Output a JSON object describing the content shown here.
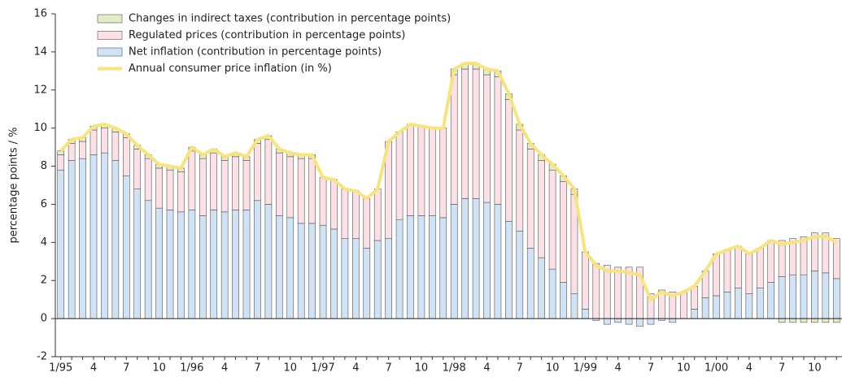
{
  "chart_data": {
    "type": "bar",
    "stacked": true,
    "y_label": "percentage points / %",
    "categories": [
      "1/95",
      null,
      null,
      "4",
      null,
      null,
      "7",
      null,
      null,
      "10",
      null,
      null,
      "1/96",
      null,
      null,
      "4",
      null,
      null,
      "7",
      null,
      null,
      "10",
      null,
      null,
      "1/97",
      null,
      null,
      "4",
      null,
      null,
      "7",
      null,
      null,
      "10",
      null,
      null,
      "1/98",
      null,
      null,
      "4",
      null,
      null,
      "7",
      null,
      null,
      "10",
      null,
      null,
      "1/99",
      null,
      null,
      "4",
      null,
      null,
      "7",
      null,
      null,
      "10",
      null,
      null,
      "1/00",
      null,
      null,
      "4",
      null,
      null,
      "7",
      null,
      null,
      "10",
      null,
      null
    ],
    "ylim": [
      -2,
      16
    ],
    "yticks": [
      -2,
      0,
      2,
      4,
      6,
      8,
      10,
      12,
      14,
      16
    ],
    "series": [
      {
        "name": "Net inflation (contribution in percentage points)",
        "color": "#cfe3f5",
        "type": "bar",
        "values": [
          7.8,
          8.3,
          8.4,
          8.6,
          8.7,
          8.3,
          7.5,
          6.8,
          6.2,
          5.8,
          5.7,
          5.6,
          5.7,
          5.4,
          5.7,
          5.6,
          5.7,
          5.7,
          6.2,
          6.0,
          5.4,
          5.3,
          5.0,
          5.0,
          4.9,
          4.7,
          4.2,
          4.2,
          3.7,
          4.1,
          4.2,
          5.2,
          5.4,
          5.4,
          5.4,
          5.3,
          6.0,
          6.3,
          6.3,
          6.1,
          6.0,
          5.1,
          4.6,
          3.7,
          3.2,
          2.6,
          1.9,
          1.3,
          0.5,
          -0.1,
          -0.3,
          -0.2,
          -0.3,
          -0.4,
          -0.3,
          -0.1,
          -0.2,
          0,
          0.5,
          1.1,
          1.2,
          1.4,
          1.6,
          1.3,
          1.6,
          1.9,
          2.2,
          2.3,
          2.3,
          2.5,
          2.4,
          2.1
        ]
      },
      {
        "name": "Regulated prices (contribution in percentage points)",
        "color": "#fbe0e6",
        "type": "bar",
        "values": [
          0.8,
          0.9,
          0.9,
          1.3,
          1.3,
          1.5,
          2.0,
          2.1,
          2.2,
          2.1,
          2.1,
          2.1,
          3.1,
          3.0,
          3.0,
          2.7,
          2.8,
          2.6,
          3.0,
          3.4,
          3.3,
          3.2,
          3.4,
          3.4,
          2.5,
          2.6,
          2.6,
          2.5,
          2.6,
          2.7,
          5.1,
          4.6,
          4.8,
          4.7,
          4.6,
          4.7,
          6.8,
          6.8,
          6.8,
          6.7,
          6.7,
          6.4,
          5.3,
          5.2,
          5.1,
          5.2,
          5.3,
          5.2,
          3.0,
          2.9,
          2.8,
          2.7,
          2.7,
          2.7,
          1.3,
          1.5,
          1.4,
          1.4,
          1.2,
          1.4,
          2.2,
          2.2,
          2.2,
          2.1,
          2.1,
          2.2,
          1.9,
          1.9,
          2.0,
          2.0,
          2.1,
          2.1
        ]
      },
      {
        "name": "Changes in indirect taxes (contribution in percentage points)",
        "color": "#e3ecc9",
        "type": "bar",
        "values": [
          0.2,
          0.2,
          0.2,
          0.2,
          0.2,
          0.2,
          0.2,
          0.2,
          0.2,
          0.2,
          0.2,
          0.2,
          0.2,
          0.2,
          0.2,
          0.2,
          0.2,
          0.2,
          0.2,
          0.2,
          0.2,
          0.2,
          0.2,
          0.2,
          0,
          0,
          0,
          0,
          0,
          0,
          0,
          0,
          0,
          0,
          0,
          0,
          0.3,
          0.3,
          0.3,
          0.3,
          0.3,
          0.3,
          0.3,
          0.3,
          0.3,
          0.3,
          0.3,
          0.3,
          0,
          0,
          0,
          0,
          0,
          0,
          0,
          0,
          0,
          0,
          0,
          0,
          0,
          0,
          0,
          0,
          0,
          0,
          -0.2,
          -0.2,
          -0.2,
          -0.2,
          -0.2,
          -0.2
        ]
      },
      {
        "name": "Annual consumer price inflation (in %)",
        "color": "#f7e47a",
        "type": "line",
        "values": [
          8.8,
          9.4,
          9.5,
          10.1,
          10.2,
          10.0,
          9.7,
          9.1,
          8.6,
          8.1,
          8.0,
          7.9,
          9.0,
          8.6,
          8.9,
          8.5,
          8.7,
          8.5,
          9.4,
          9.6,
          8.9,
          8.7,
          8.6,
          8.6,
          7.4,
          7.3,
          6.8,
          6.7,
          6.3,
          6.8,
          9.3,
          9.8,
          10.2,
          10.1,
          10.0,
          10.0,
          13.1,
          13.4,
          13.4,
          13.1,
          13.0,
          11.8,
          10.2,
          9.2,
          8.6,
          8.1,
          7.5,
          6.8,
          3.5,
          2.8,
          2.5,
          2.5,
          2.4,
          2.3,
          1.0,
          1.4,
          1.2,
          1.4,
          1.7,
          2.5,
          3.4,
          3.6,
          3.8,
          3.4,
          3.7,
          4.1,
          3.9,
          4.0,
          4.1,
          4.3,
          4.3,
          4.0
        ]
      }
    ]
  }
}
